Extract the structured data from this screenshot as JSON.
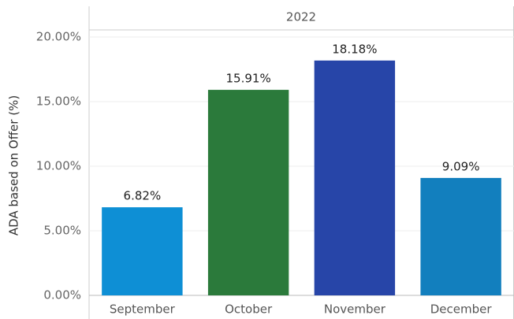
{
  "chart_data": {
    "type": "bar",
    "header": "2022",
    "y_label": "ADA based on Offer (%)",
    "categories": [
      "September",
      "October",
      "November",
      "December"
    ],
    "values": [
      6.82,
      15.91,
      18.18,
      9.09
    ],
    "value_labels": [
      "6.82%",
      "15.91%",
      "18.18%",
      "9.09%"
    ],
    "colors": [
      "#0e8fd5",
      "#2b7a3b",
      "#2745a8",
      "#127fbe"
    ],
    "ylim": [
      0,
      20.5
    ],
    "yticks": [
      {
        "value": 0,
        "label": "0.00%"
      },
      {
        "value": 5,
        "label": "5.00%"
      },
      {
        "value": 10,
        "label": "10.00%"
      },
      {
        "value": 15,
        "label": "15.00%"
      },
      {
        "value": 20,
        "label": "20.00%"
      }
    ],
    "grid": true
  }
}
